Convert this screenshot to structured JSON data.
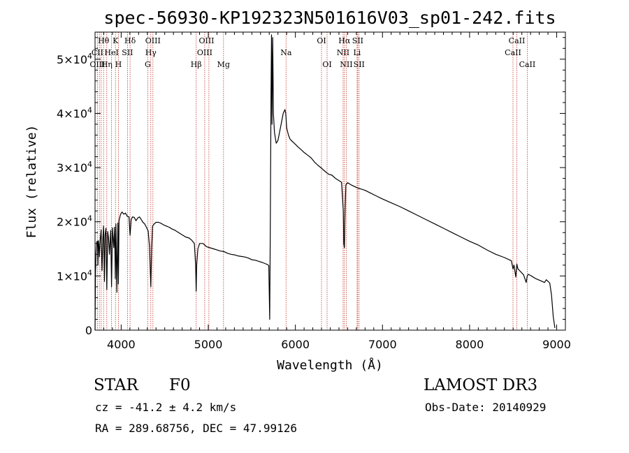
{
  "chart_data": {
    "type": "line",
    "title": "spec-56930-KP192323N501616V03_sp01-242.fits",
    "xlabel": "Wavelength (Å)",
    "ylabel": "Flux (relative)",
    "xlim": [
      3700,
      9100
    ],
    "ylim": [
      0,
      55000
    ],
    "x_ticks": [
      4000,
      5000,
      6000,
      7000,
      8000,
      9000
    ],
    "y_ticks": [
      {
        "value": 0,
        "mantissa": "0",
        "exp": ""
      },
      {
        "value": 10000,
        "mantissa": "1×10",
        "exp": "4"
      },
      {
        "value": 20000,
        "mantissa": "2×10",
        "exp": "4"
      },
      {
        "value": 30000,
        "mantissa": "3×10",
        "exp": "4"
      },
      {
        "value": 40000,
        "mantissa": "4×10",
        "exp": "4"
      },
      {
        "value": 50000,
        "mantissa": "5×10",
        "exp": "4"
      }
    ],
    "spectrum": {
      "wavelength": [
        3700,
        3705,
        3712,
        3720,
        3728,
        3733,
        3738,
        3745,
        3750,
        3760,
        3770,
        3780,
        3790,
        3798,
        3808,
        3815,
        3825,
        3835,
        3845,
        3855,
        3865,
        3880,
        3889,
        3900,
        3915,
        3925,
        3933,
        3940,
        3950,
        3962,
        3968,
        3975,
        3990,
        4000,
        4010,
        4030,
        4050,
        4070,
        4090,
        4102,
        4115,
        4130,
        4150,
        4170,
        4190,
        4210,
        4230,
        4250,
        4270,
        4290,
        4310,
        4325,
        4340,
        4350,
        4360,
        4380,
        4400,
        4430,
        4460,
        4490,
        4520,
        4550,
        4580,
        4620,
        4660,
        4700,
        4740,
        4780,
        4810,
        4840,
        4855,
        4861,
        4867,
        4880,
        4900,
        4940,
        4980,
        5020,
        5060,
        5100,
        5140,
        5180,
        5220,
        5260,
        5300,
        5340,
        5380,
        5420,
        5460,
        5500,
        5540,
        5580,
        5620,
        5650,
        5680,
        5695,
        5700,
        5705,
        5712,
        5720,
        5726,
        5732,
        5740,
        5748,
        5760,
        5780,
        5800,
        5830,
        5860,
        5880,
        5890,
        5900,
        5920,
        5940,
        5960,
        5980,
        6000,
        6030,
        6060,
        6100,
        6140,
        6180,
        6220,
        6260,
        6300,
        6340,
        6380,
        6420,
        6460,
        6500,
        6530,
        6550,
        6556,
        6563,
        6570,
        6580,
        6600,
        6640,
        6680,
        6720,
        6760,
        6800,
        6850,
        6900,
        6950,
        7000,
        7100,
        7200,
        7300,
        7400,
        7500,
        7600,
        7700,
        7800,
        7900,
        8000,
        8100,
        8200,
        8300,
        8400,
        8480,
        8498,
        8510,
        8530,
        8542,
        8555,
        8580,
        8620,
        8650,
        8662,
        8675,
        8700,
        8760,
        8820,
        8860,
        8880,
        8900,
        8920,
        8940,
        8960,
        8980
      ],
      "flux": [
        0,
        10500,
        14500,
        16300,
        16400,
        12000,
        16500,
        15500,
        13500,
        16800,
        18500,
        11000,
        17000,
        19200,
        9000,
        17500,
        18800,
        7500,
        18200,
        17000,
        14000,
        18400,
        8000,
        18900,
        15200,
        19000,
        9500,
        19600,
        7000,
        19800,
        8500,
        20200,
        21200,
        21600,
        21800,
        21400,
        21600,
        21000,
        20900,
        17500,
        20400,
        20900,
        20800,
        20200,
        20700,
        20900,
        20400,
        19900,
        19600,
        19000,
        18300,
        15500,
        8000,
        15000,
        19200,
        19600,
        19900,
        19900,
        19700,
        19400,
        19200,
        19000,
        18700,
        18400,
        18000,
        17600,
        17200,
        17000,
        16600,
        16000,
        12000,
        7200,
        12000,
        15000,
        16000,
        16000,
        15400,
        15200,
        15000,
        14800,
        14600,
        14500,
        14200,
        14000,
        13900,
        13700,
        13600,
        13500,
        13300,
        13000,
        12900,
        12700,
        12500,
        12300,
        12100,
        11900,
        6500,
        2000,
        20000,
        44000,
        54500,
        38000,
        54000,
        40000,
        36500,
        34500,
        35000,
        37500,
        40000,
        40700,
        40000,
        37300,
        36000,
        35200,
        34900,
        34600,
        34300,
        33800,
        33400,
        32800,
        32300,
        31800,
        31000,
        30400,
        29900,
        29300,
        28800,
        28600,
        28000,
        27600,
        27300,
        22000,
        16000,
        15200,
        22000,
        26800,
        27200,
        26800,
        26500,
        26200,
        26000,
        25800,
        25400,
        25000,
        24600,
        24200,
        23500,
        22800,
        22000,
        21200,
        20400,
        19600,
        18800,
        18000,
        17200,
        16400,
        15700,
        14800,
        14000,
        13400,
        12800,
        11300,
        12000,
        9800,
        12200,
        11300,
        10900,
        10200,
        8800,
        10000,
        10300,
        10100,
        9500,
        9100,
        8800,
        9300,
        9000,
        8700,
        6500,
        2500,
        400
      ]
    },
    "line_labels": [
      {
        "text": "CII",
        "x": 3727,
        "row": 1,
        "align": "center"
      },
      {
        "text": "OIII",
        "x": 3727,
        "row": 2,
        "align": "center"
      },
      {
        "text": "Hθ",
        "x": 3798,
        "row": 0,
        "align": "center"
      },
      {
        "text": "Hη",
        "x": 3835,
        "row": 2,
        "align": "center"
      },
      {
        "text": "HeI",
        "x": 3889,
        "row": 1,
        "align": "center"
      },
      {
        "text": "K",
        "x": 3934,
        "row": 0,
        "align": "center"
      },
      {
        "text": "H",
        "x": 3968,
        "row": 2,
        "align": "center"
      },
      {
        "text": "SII",
        "x": 4072,
        "row": 1,
        "align": "center"
      },
      {
        "text": "Hδ",
        "x": 4102,
        "row": 0,
        "align": "center"
      },
      {
        "text": "OIII",
        "x": 4364,
        "row": 0,
        "align": "center"
      },
      {
        "text": "Hγ",
        "x": 4340,
        "row": 1,
        "align": "center"
      },
      {
        "text": "G",
        "x": 4305,
        "row": 2,
        "align": "center"
      },
      {
        "text": "Hβ",
        "x": 4861,
        "row": 2,
        "align": "center"
      },
      {
        "text": "OIII",
        "x": 4980,
        "row": 0,
        "align": "center"
      },
      {
        "text": "OIII",
        "x": 4959,
        "row": 1,
        "align": "center"
      },
      {
        "text": "Mg",
        "x": 5175,
        "row": 2,
        "align": "center"
      },
      {
        "text": "Na",
        "x": 5893,
        "row": 1,
        "align": "center"
      },
      {
        "text": "OI",
        "x": 6300,
        "row": 0,
        "align": "center"
      },
      {
        "text": "OI",
        "x": 6364,
        "row": 2,
        "align": "center"
      },
      {
        "text": "Hα",
        "x": 6563,
        "row": 0,
        "align": "center"
      },
      {
        "text": "SII",
        "x": 6716,
        "row": 0,
        "align": "center"
      },
      {
        "text": "NII",
        "x": 6548,
        "row": 1,
        "align": "center"
      },
      {
        "text": "Li",
        "x": 6708,
        "row": 1,
        "align": "center"
      },
      {
        "text": "NII",
        "x": 6584,
        "row": 2,
        "align": "center"
      },
      {
        "text": "SII",
        "x": 6731,
        "row": 2,
        "align": "center"
      },
      {
        "text": "CaII",
        "x": 8542,
        "row": 0,
        "align": "center"
      },
      {
        "text": "CaII",
        "x": 8498,
        "row": 1,
        "align": "center"
      },
      {
        "text": "CaII",
        "x": 8662,
        "row": 2,
        "align": "center"
      }
    ],
    "line_markers": [
      3727,
      3750,
      3771,
      3798,
      3835,
      3889,
      3934,
      3968,
      4072,
      4102,
      4305,
      4340,
      4364,
      4861,
      4959,
      5007,
      5175,
      5893,
      6300,
      6364,
      6548,
      6563,
      6584,
      6708,
      6716,
      6731,
      8498,
      8542,
      8662
    ]
  },
  "info": {
    "object_type": "STAR",
    "spectral_class": "F0",
    "survey": "LAMOST DR3",
    "redshift": "cz = -41.2 ± 4.2 km/s",
    "obs_date": "Obs-Date: 20140929",
    "coords": "RA = 289.68756, DEC =  47.99126"
  }
}
